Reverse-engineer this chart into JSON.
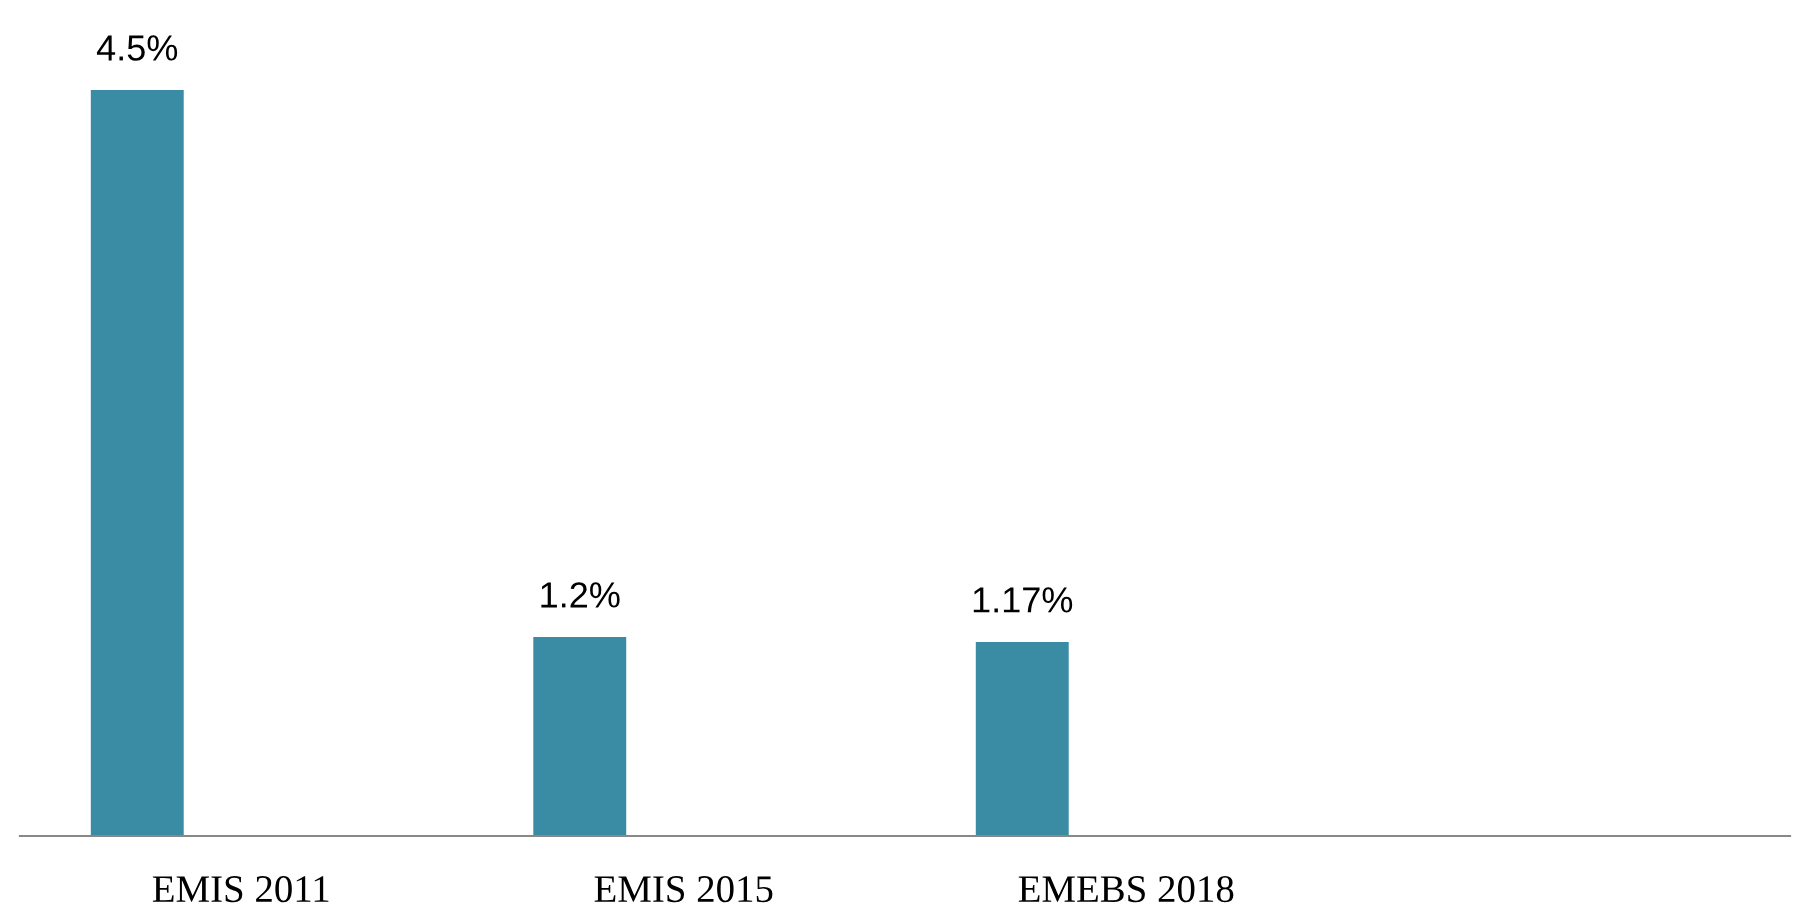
{
  "chart_data": {
    "type": "bar",
    "categories": [
      "EMIS 2011",
      "EMIS 2015",
      "EMEBS 2018",
      null
    ],
    "values": [
      4.5,
      1.2,
      1.17,
      null
    ],
    "value_labels": [
      "4.5%",
      "1.2%",
      "1.17%",
      null
    ],
    "color": "#3a8ca4",
    "grid": false,
    "legend": false
  }
}
